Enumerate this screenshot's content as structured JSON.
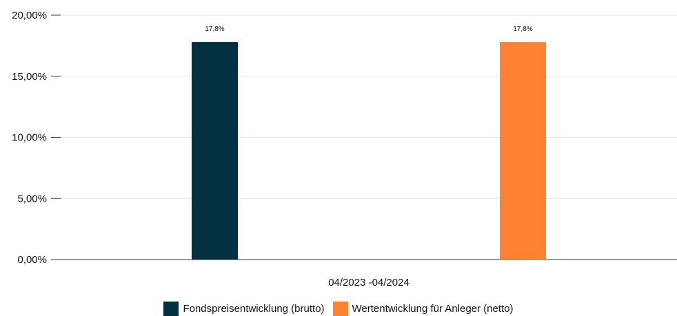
{
  "chart_data": {
    "type": "bar",
    "categories": [
      "04/2023 -04/2024"
    ],
    "series": [
      {
        "name": "Fondspreisentwicklung (brutto)",
        "values": [
          17.8
        ],
        "label": "17,8%",
        "color": "#033142"
      },
      {
        "name": "Wertentwicklung für Anleger (netto)",
        "values": [
          17.8
        ],
        "label": "17,8%",
        "color": "#ff8133"
      }
    ],
    "ylim": [
      0,
      20
    ],
    "yticks": [
      {
        "value": 0,
        "label": "0,00%"
      },
      {
        "value": 5,
        "label": "5,00%"
      },
      {
        "value": 10,
        "label": "10,00%"
      },
      {
        "value": 15,
        "label": "15,00%"
      },
      {
        "value": 20,
        "label": "20,00%"
      }
    ],
    "grid": true,
    "legend_position": "bottom"
  }
}
